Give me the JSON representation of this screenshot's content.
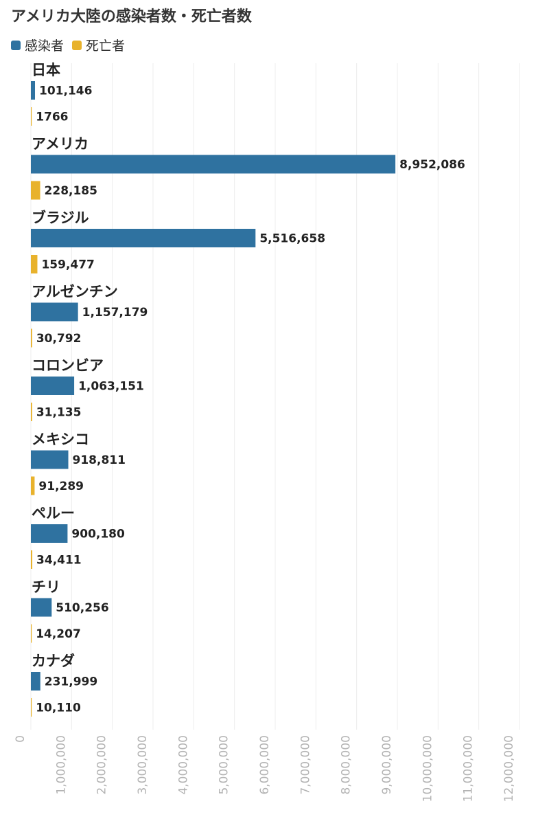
{
  "chart_data": {
    "type": "bar",
    "orientation": "horizontal",
    "title": "アメリカ大陸の感染者数・死亡者数",
    "categories": [
      "日本",
      "アメリカ",
      "ブラジル",
      "アルゼンチン",
      "コロンビア",
      "メキシコ",
      "ペルー",
      "チリ",
      "カナダ"
    ],
    "series": [
      {
        "name": "感染者",
        "color": "#2f72a0",
        "values": [
          101146,
          8952086,
          5516658,
          1157179,
          1063151,
          918811,
          900180,
          510256,
          231999
        ],
        "labels": [
          "101,146",
          "8,952,086",
          "5,516,658",
          "1,157,179",
          "1,063,151",
          "918,811",
          "900,180",
          "510,256",
          "231,999"
        ]
      },
      {
        "name": "死亡者",
        "color": "#e8b22c",
        "values": [
          1766,
          228185,
          159477,
          30792,
          31135,
          91289,
          34411,
          14207,
          10110
        ],
        "labels": [
          "1766",
          "228,185",
          "159,477",
          "30,792",
          "31,135",
          "91,289",
          "34,411",
          "14,207",
          "10,110"
        ]
      }
    ],
    "xlim": [
      0,
      12000000
    ],
    "xticks": [
      0,
      1000000,
      2000000,
      3000000,
      4000000,
      5000000,
      6000000,
      7000000,
      8000000,
      9000000,
      10000000,
      11000000,
      12000000
    ],
    "xtick_labels": [
      "0",
      "1,000,000",
      "2,000,000",
      "3,000,000",
      "4,000,000",
      "5,000,000",
      "6,000,000",
      "7,000,000",
      "8,000,000",
      "9,000,000",
      "10,000,000",
      "11,000,000",
      "12,000,000"
    ],
    "grid": true,
    "legend": "top-left"
  }
}
